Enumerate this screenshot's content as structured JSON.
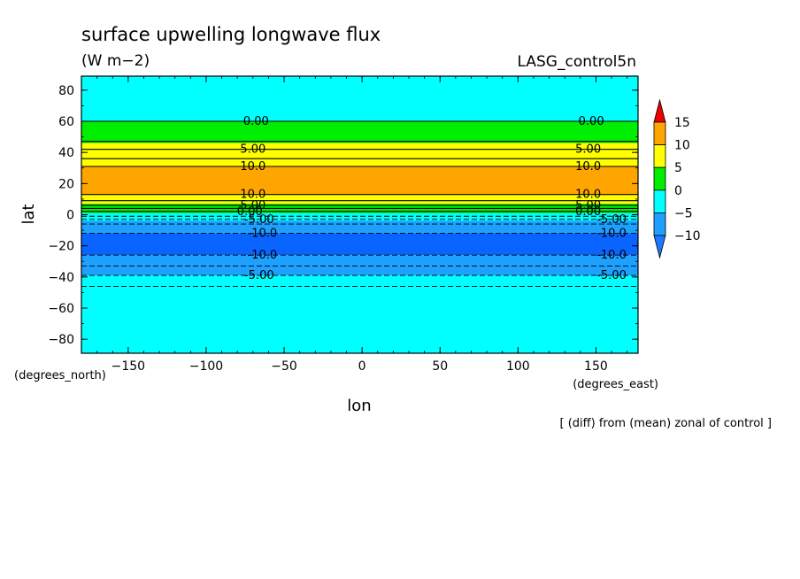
{
  "chart_data": {
    "type": "heatmap",
    "title": "surface upwelling longwave flux",
    "units": "(W m−2)",
    "run_label": "LASG_control5n",
    "xlabel": "lon",
    "ylabel": "lat",
    "x_units": "(degrees_east)",
    "y_units": "(degrees_north)",
    "footnote": "[ (diff) from (mean) zonal of control ]",
    "xlim": [
      -180,
      177
    ],
    "ylim": [
      -89,
      89
    ],
    "x_ticks": [
      -150,
      -100,
      -50,
      0,
      50,
      100,
      150
    ],
    "x_tick_labels": [
      "−150",
      "−100",
      "−50",
      "0",
      "50",
      "100",
      "150"
    ],
    "y_ticks": [
      80,
      60,
      40,
      20,
      0,
      -20,
      -40,
      -60,
      -80
    ],
    "y_tick_labels": [
      "80",
      "60",
      "40",
      "20",
      "0",
      "−20",
      "−40",
      "−60",
      "−80"
    ],
    "color_levels": [
      {
        "range": [
          10,
          15
        ],
        "color": "#ffa500"
      },
      {
        "range": [
          5,
          10
        ],
        "color": "#ffff00"
      },
      {
        "range": [
          0,
          5
        ],
        "color": "#00ee00"
      },
      {
        "range": [
          -5,
          0
        ],
        "color": "#00ffff"
      },
      {
        "range": [
          -10,
          -5
        ],
        "color": "#1ea0ff"
      },
      {
        "range": [
          -15,
          -10
        ],
        "color": "#0a64ff"
      }
    ],
    "colorbar": {
      "labels": [
        "15",
        "10",
        "5",
        "0",
        "−5",
        "−10"
      ],
      "over_color": "#ee0000",
      "under_color": "#1e78ff"
    },
    "bands": [
      {
        "lat": [
          60,
          89
        ],
        "color": "#00ffff"
      },
      {
        "lat": [
          46,
          60
        ],
        "color": "#00ee00"
      },
      {
        "lat": [
          31,
          46
        ],
        "color": "#ffff00"
      },
      {
        "lat": [
          13,
          31
        ],
        "color": "#ffa500"
      },
      {
        "lat": [
          7,
          13
        ],
        "color": "#ffff00"
      },
      {
        "lat": [
          1,
          7
        ],
        "color": "#00ee00"
      },
      {
        "lat": [
          -4,
          1
        ],
        "color": "#00ffff"
      },
      {
        "lat": [
          -12,
          -4
        ],
        "color": "#1ea0ff"
      },
      {
        "lat": [
          -26,
          -12
        ],
        "color": "#0a64ff"
      },
      {
        "lat": [
          -39,
          -26
        ],
        "color": "#1ea0ff"
      },
      {
        "lat": [
          -89,
          -39
        ],
        "color": "#00ffff"
      }
    ],
    "contours": [
      {
        "lat": 60,
        "dashed": false
      },
      {
        "lat": 47,
        "dashed": false
      },
      {
        "lat": 42,
        "dashed": false
      },
      {
        "lat": 36,
        "dashed": false
      },
      {
        "lat": 31,
        "dashed": false
      },
      {
        "lat": 13,
        "dashed": false
      },
      {
        "lat": 9,
        "dashed": false
      },
      {
        "lat": 6,
        "dashed": false
      },
      {
        "lat": 4,
        "dashed": false
      },
      {
        "lat": 2,
        "dashed": false
      },
      {
        "lat": -1,
        "dashed": true
      },
      {
        "lat": -3,
        "dashed": true
      },
      {
        "lat": -6,
        "dashed": true
      },
      {
        "lat": -12,
        "dashed": true
      },
      {
        "lat": -26,
        "dashed": true
      },
      {
        "lat": -33,
        "dashed": true
      },
      {
        "lat": -39,
        "dashed": true
      },
      {
        "lat": -46,
        "dashed": true
      }
    ],
    "contour_labels": [
      {
        "text": "0.00",
        "lat": 60,
        "lon": [
          -68,
          147
        ]
      },
      {
        "text": "5.00",
        "lat": 42,
        "lon": [
          -70,
          145
        ]
      },
      {
        "text": "10.0",
        "lat": 31,
        "lon": [
          -70,
          145
        ]
      },
      {
        "text": "10.0",
        "lat": 13,
        "lon": [
          -70,
          145
        ]
      },
      {
        "text": "5.00",
        "lat": 6,
        "lon": [
          -70,
          145
        ]
      },
      {
        "text": "0.00",
        "lat": 2,
        "lon": [
          -72,
          145
        ]
      },
      {
        "text": "-5.00",
        "lat": -3,
        "lon": [
          -66,
          160
        ]
      },
      {
        "text": "-10.0",
        "lat": -12,
        "lon": [
          -64,
          160
        ]
      },
      {
        "text": "-10.0",
        "lat": -26,
        "lon": [
          -64,
          160
        ]
      },
      {
        "text": "-5.00",
        "lat": -39,
        "lon": [
          -66,
          160
        ]
      }
    ]
  }
}
